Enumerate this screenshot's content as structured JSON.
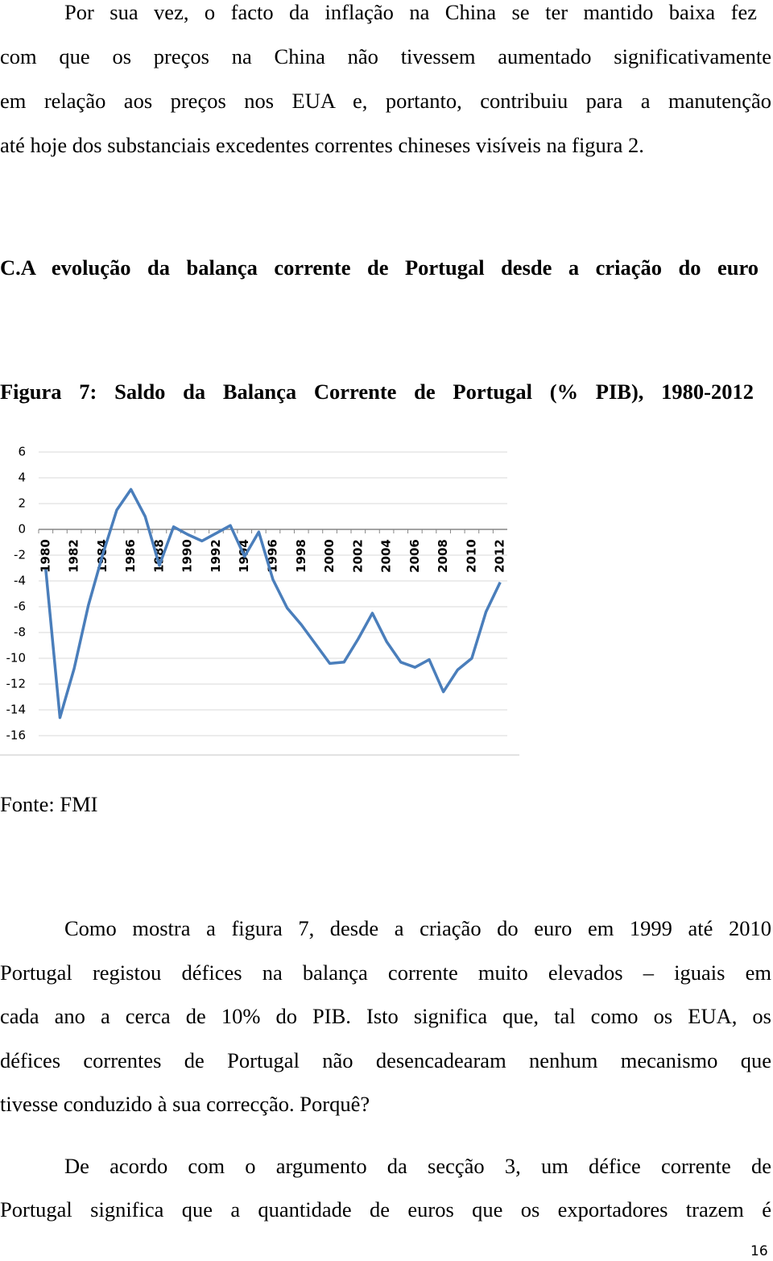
{
  "paragraphs": [
    {
      "lines": [
        "Por sua vez, o facto da inflação na China se ter mantido baixa fez",
        "com que os preços na China não tivessem aumentado significativamente",
        "em relação aos preços nos EUA e, portanto, contribuiu para a manutenção",
        "até hoje dos substanciais excedentes correntes chineses visíveis na figura 2."
      ]
    },
    {
      "lines": [
        "Como mostra a figura 7, desde a criação do euro em 1999 até 2010",
        "Portugal registou défices na balança corrente muito elevados – iguais em",
        "cada ano a cerca de 10% do PIB. Isto significa que, tal como os EUA, os",
        "défices correntes de Portugal não desencadearam nenhum mecanismo que",
        "tivesse conduzido à sua correcção. Porquê?"
      ]
    },
    {
      "lines": [
        "De acordo com o argumento da secção 3, um défice corrente de",
        "Portugal significa que  a quantidade de euros que os exportadores trazem é"
      ]
    }
  ],
  "heading": "C.A evolução da balança corrente de Portugal desde a criação do euro",
  "figure_caption": "Figura 7: Saldo da Balança Corrente de Portugal (% PIB), 1980-2012",
  "chart_data": {
    "type": "line",
    "categories": [
      "1980",
      null,
      "1982",
      null,
      "1984",
      null,
      "1986",
      null,
      "1988",
      null,
      "1990",
      null,
      "1992",
      null,
      "1994",
      null,
      "1996",
      null,
      "1998",
      null,
      "2000",
      null,
      "2002",
      null,
      "2004",
      null,
      "2006",
      null,
      "2008",
      null,
      "2010",
      null,
      "2012"
    ],
    "values": [
      -3.1,
      -14.6,
      -10.8,
      -5.9,
      -2.0,
      1.5,
      3.1,
      1.0,
      -2.8,
      0.2,
      -0.4,
      -0.9,
      -0.3,
      0.3,
      -2.1,
      -0.2,
      -3.9,
      -6.1,
      -7.4,
      -8.9,
      -10.4,
      -10.3,
      -8.5,
      -6.5,
      -8.7,
      -10.3,
      -10.7,
      -10.1,
      -12.6,
      -10.9,
      -10.0,
      -6.4,
      -4.1
    ],
    "color": "#4a7ebb",
    "ylim": [
      -16,
      6
    ],
    "yticks": [
      -16,
      -14,
      -12,
      -10,
      -8,
      -6,
      -4,
      -2,
      0,
      2,
      4,
      6
    ],
    "grid": true
  },
  "source": "Fonte: FMI",
  "page_number": "16"
}
